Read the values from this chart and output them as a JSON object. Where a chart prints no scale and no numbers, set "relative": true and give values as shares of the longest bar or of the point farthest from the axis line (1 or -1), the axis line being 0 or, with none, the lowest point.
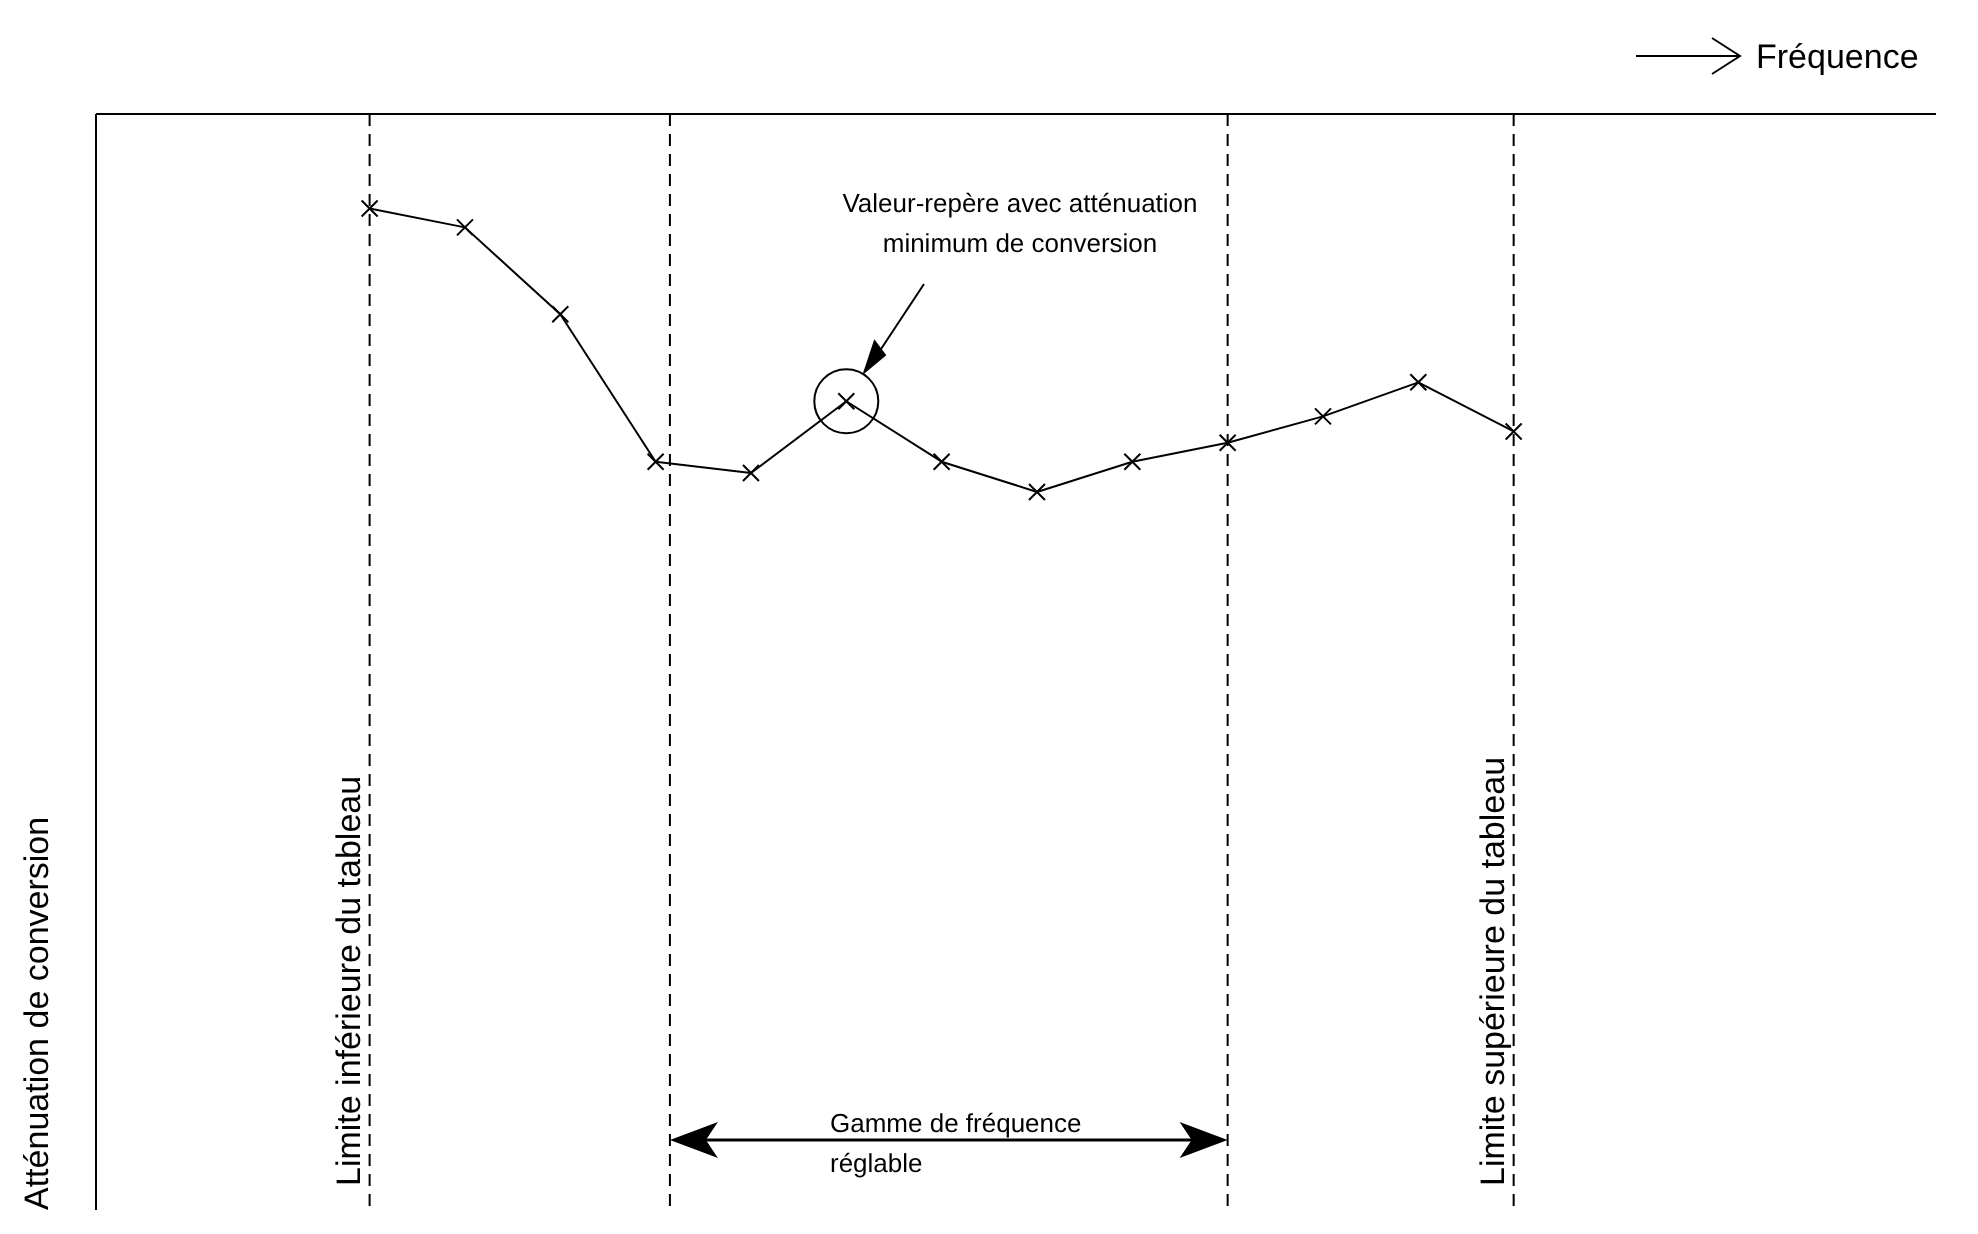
{
  "chart_data": {
    "type": "line",
    "relative": true,
    "categories": [
      null,
      null,
      null,
      null,
      null,
      null,
      null,
      null,
      null,
      null,
      null,
      null,
      null
    ],
    "series": [
      {
        "color": "#000000",
        "values": [
          -0.25,
          -0.3,
          -0.53,
          -0.92,
          -0.95,
          -0.76,
          -0.92,
          -1,
          -0.92,
          -0.87,
          -0.8,
          -0.71,
          -0.84
        ]
      }
    ],
    "marker": "cross",
    "line_style": "solid",
    "grid": "x",
    "legend": false,
    "annotations": [
      "Fréquence",
      "Atténuation de conversion",
      "Limite inférieure du tableau",
      "Limite supérieure du tableau",
      "Valeur-repère avec atténuation minimum de conversion",
      "Gamme de fréquence réglable"
    ]
  }
}
